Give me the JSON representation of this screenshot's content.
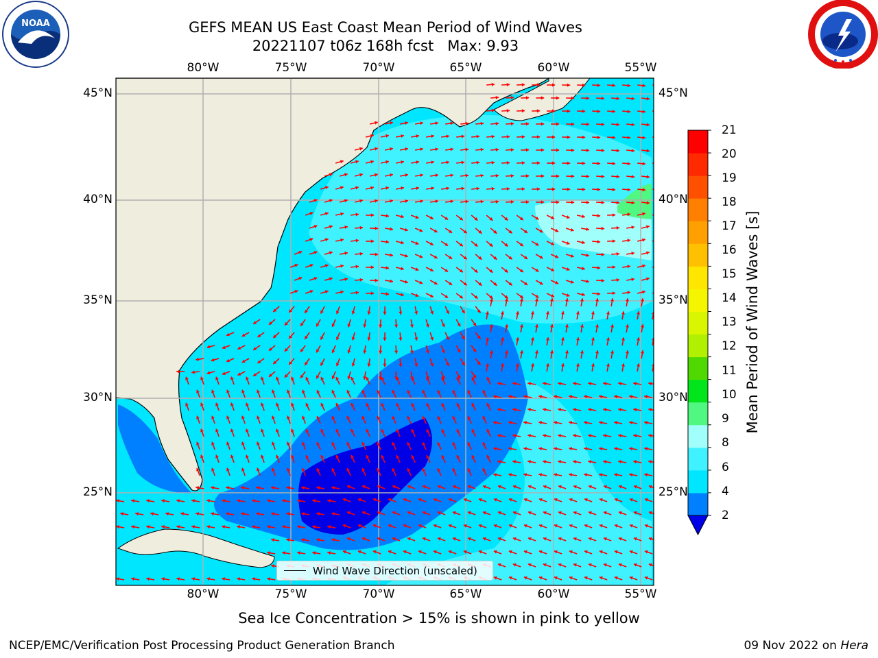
{
  "header": {
    "title_line1": "GEFS MEAN US East Coast Mean Period of Wind Waves",
    "title_line2": "20221107 t06z 168h fcst   Max: 9.93"
  },
  "logos": {
    "noaa": {
      "name": "noaa-logo",
      "text": "NOAA",
      "ring_text": "NATIONAL OCEANIC AND ATMOSPHERIC ADMINISTRATION · U.S. DEPARTMENT OF COMMERCE"
    },
    "nws": {
      "name": "nws-logo",
      "ring_text": "NATIONAL WEATHER SERVICE"
    }
  },
  "map": {
    "lon_labels": [
      "80°W",
      "75°W",
      "70°W",
      "65°W",
      "60°W",
      "55°W"
    ],
    "lat_labels": [
      "45°N",
      "40°N",
      "35°N",
      "30°N",
      "25°N"
    ],
    "legend_label": "Wind Wave Direction (unscaled)",
    "arrow_color": "#ff0000",
    "land_color": "#efedde",
    "grid_color": "#b0b0b0"
  },
  "colorbar": {
    "label": "Mean Period of Wind Waves [s]",
    "ticks": [
      "21",
      "20",
      "19",
      "18",
      "17",
      "16",
      "15",
      "14",
      "13",
      "12",
      "11",
      "10",
      "9",
      "8",
      "6",
      "4",
      "2"
    ],
    "colors": [
      "#0000e6",
      "#0080ff",
      "#00e6ff",
      "#40f2ff",
      "#a0fffa",
      "#50f780",
      "#00e61a",
      "#50d900",
      "#b0f000",
      "#d9f500",
      "#f5f500",
      "#ffe600",
      "#ffc000",
      "#ffa000",
      "#ff8000",
      "#ff5000",
      "#ff2a00",
      "#ff0000"
    ]
  },
  "footer": {
    "subtitle": "Sea Ice Concentration > 15% is shown in pink to yellow",
    "left": "NCEP/EMC/Verification Post Processing Product Generation Branch",
    "right_date": "09 Nov 2022 on ",
    "right_host": "Hera"
  }
}
